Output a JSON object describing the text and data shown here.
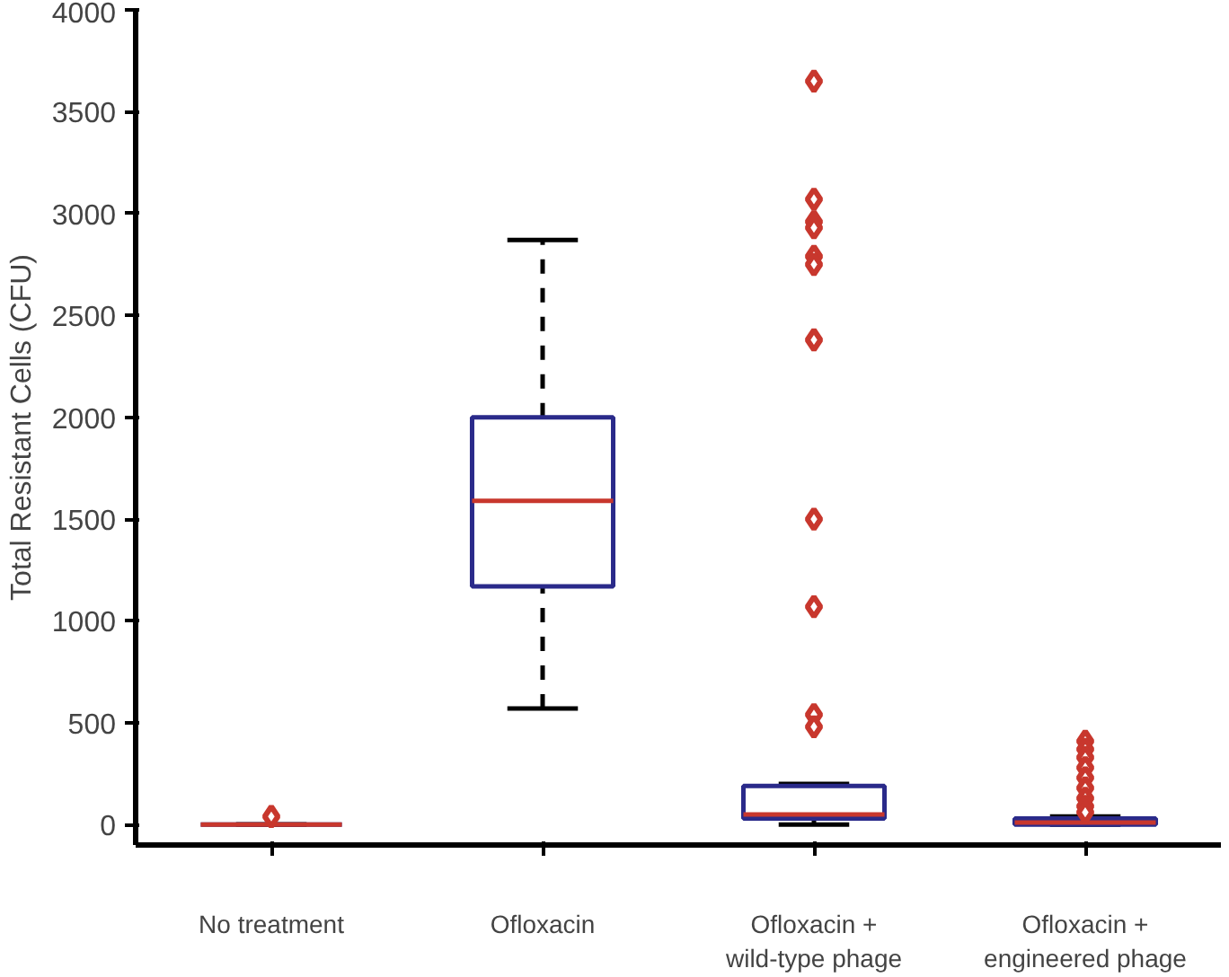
{
  "chart_data": {
    "type": "box",
    "ylabel": "Total Resistant Cells (CFU)",
    "categories": [
      "No treatment",
      "Ofloxacin",
      "Ofloxacin +\nwild-type phage",
      "Ofloxacin +\nengineered phage"
    ],
    "series": [
      {
        "color": "#2a2a8a",
        "boxes": [
          {
            "low": 0,
            "q1": 0,
            "median": 0,
            "q3": 0,
            "high": 0,
            "outliers": [
              40
            ]
          },
          {
            "low": 570,
            "q1": 1170,
            "median": 1590,
            "q3": 2000,
            "high": 2870
          },
          {
            "low": 0,
            "q1": 30,
            "median": 50,
            "q3": 190,
            "high": 200,
            "outliers": [
              3650,
              3070,
              2960,
              2930,
              2790,
              2750,
              2380,
              1500,
              1070,
              540,
              480
            ]
          },
          {
            "low": 0,
            "q1": 0,
            "median": 10,
            "q3": 30,
            "high": 40,
            "outliers": [
              410,
              370,
              330,
              280,
              230,
              180,
              130,
              90,
              60
            ]
          }
        ]
      }
    ],
    "ylim": [
      -100,
      4000
    ],
    "yticks": [
      0,
      500,
      1000,
      1500,
      2000,
      2500,
      3000,
      3500,
      4000
    ],
    "marker": "diamond",
    "grid": false
  }
}
